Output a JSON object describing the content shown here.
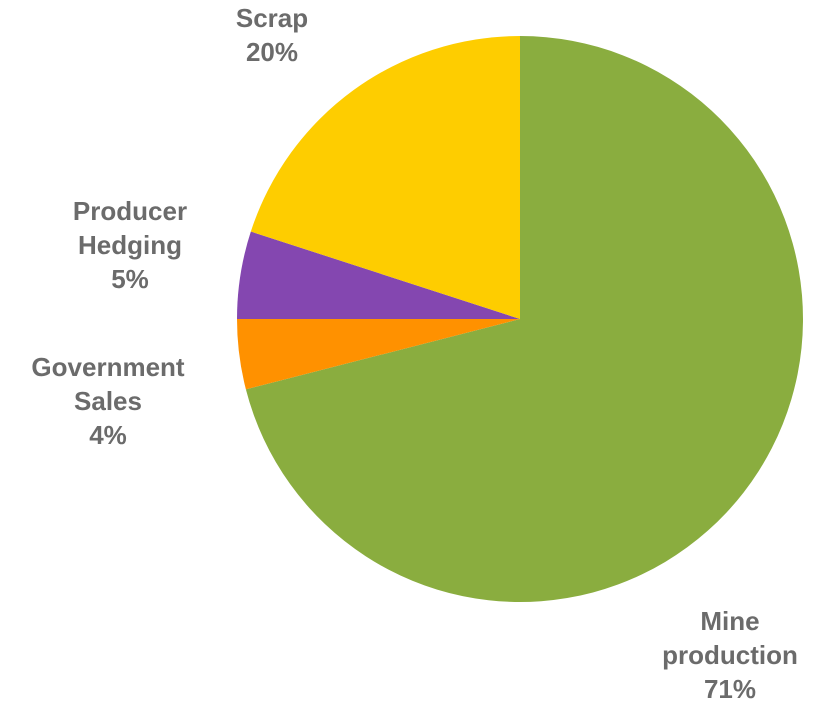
{
  "chart_data": {
    "type": "pie",
    "title": "",
    "start_angle_deg": 0,
    "direction": "clockwise",
    "slices": [
      {
        "name": "Mine production",
        "label_lines": [
          "Mine",
          "production"
        ],
        "percent_label": "71%",
        "value": 71,
        "color": "#8aad3f"
      },
      {
        "name": "Government Sales",
        "label_lines": [
          "Government",
          "Sales"
        ],
        "percent_label": "4%",
        "value": 4,
        "color": "#ff9100"
      },
      {
        "name": "Producer Hedging",
        "label_lines": [
          "Producer",
          "Hedging"
        ],
        "percent_label": "5%",
        "value": 5,
        "color": "#8447b0"
      },
      {
        "name": "Scrap",
        "label_lines": [
          "Scrap"
        ],
        "percent_label": "20%",
        "value": 20,
        "color": "#fecd00"
      }
    ],
    "label_color": "#6b6b6b"
  }
}
